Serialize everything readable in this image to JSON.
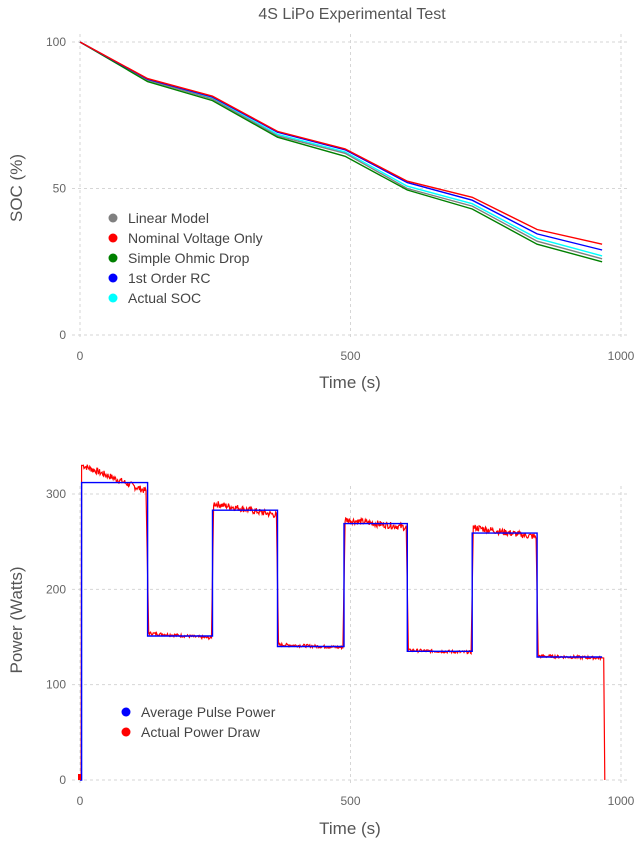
{
  "chart_data": [
    {
      "type": "line",
      "title": "4S LiPo Experimental Test",
      "xlabel": "Time (s)",
      "ylabel": "SOC (%)",
      "xlim": [
        0,
        1000
      ],
      "ylim": [
        0,
        100
      ],
      "xticks": [
        0,
        500,
        1000
      ],
      "yticks": [
        0,
        50,
        100
      ],
      "grid": true,
      "legend_position": "bottom-left",
      "x": [
        0,
        125,
        245,
        365,
        490,
        605,
        725,
        845,
        965
      ],
      "series": [
        {
          "name": "Linear Model",
          "color": "#808080",
          "values": [
            100,
            87,
            80.5,
            68,
            62,
            50,
            44,
            32,
            26
          ]
        },
        {
          "name": "Nominal Voltage Only",
          "color": "#ff0000",
          "values": [
            100,
            87.5,
            81.5,
            69.5,
            63.5,
            52.5,
            47,
            36,
            31
          ]
        },
        {
          "name": "Simple Ohmic Drop",
          "color": "#008000",
          "values": [
            100,
            86.5,
            80,
            67.5,
            61,
            49.5,
            43,
            31,
            25
          ]
        },
        {
          "name": "1st Order RC",
          "color": "#0000ff",
          "values": [
            100,
            87.3,
            81.2,
            69.2,
            63.2,
            52,
            46,
            34.5,
            29
          ]
        },
        {
          "name": "Actual SOC",
          "color": "#00ffff",
          "values": [
            100,
            87,
            80.7,
            68.5,
            62.5,
            50.8,
            44.8,
            33,
            27
          ]
        }
      ]
    },
    {
      "type": "line",
      "title": "",
      "xlabel": "Time (s)",
      "ylabel": "Power (Watts)",
      "xlim": [
        0,
        1000
      ],
      "ylim": [
        0,
        300
      ],
      "xticks": [
        0,
        500,
        1000
      ],
      "yticks": [
        0,
        100,
        200,
        300
      ],
      "grid": true,
      "legend_position": "bottom-left",
      "series": [
        {
          "name": "Average Pulse Power",
          "color": "#0000ff",
          "points": [
            [
              0,
              0
            ],
            [
              3,
              0
            ],
            [
              3,
              312
            ],
            [
              125,
              312
            ],
            [
              125,
              151
            ],
            [
              245,
              151
            ],
            [
              245,
              283
            ],
            [
              365,
              283
            ],
            [
              365,
              140
            ],
            [
              488,
              140
            ],
            [
              488,
              269
            ],
            [
              605,
              269
            ],
            [
              605,
              135
            ],
            [
              725,
              135
            ],
            [
              725,
              259
            ],
            [
              845,
              259
            ],
            [
              845,
              129
            ],
            [
              965,
              129
            ]
          ]
        },
        {
          "name": "Actual Power Draw",
          "color": "#ff0000",
          "segments": [
            {
              "x0": 5,
              "x1": 122,
              "y0": 330,
              "y1": 303
            },
            {
              "x0": 127,
              "x1": 243,
              "y0": 154,
              "y1": 149
            },
            {
              "x0": 247,
              "x1": 363,
              "y0": 290,
              "y1": 278
            },
            {
              "x0": 367,
              "x1": 486,
              "y0": 142,
              "y1": 139
            },
            {
              "x0": 490,
              "x1": 603,
              "y0": 273,
              "y1": 265
            },
            {
              "x0": 607,
              "x1": 723,
              "y0": 136,
              "y1": 134
            },
            {
              "x0": 727,
              "x1": 843,
              "y0": 265,
              "y1": 255
            },
            {
              "x0": 847,
              "x1": 963,
              "y0": 130,
              "y1": 128
            }
          ],
          "end_x": 970
        }
      ]
    }
  ]
}
